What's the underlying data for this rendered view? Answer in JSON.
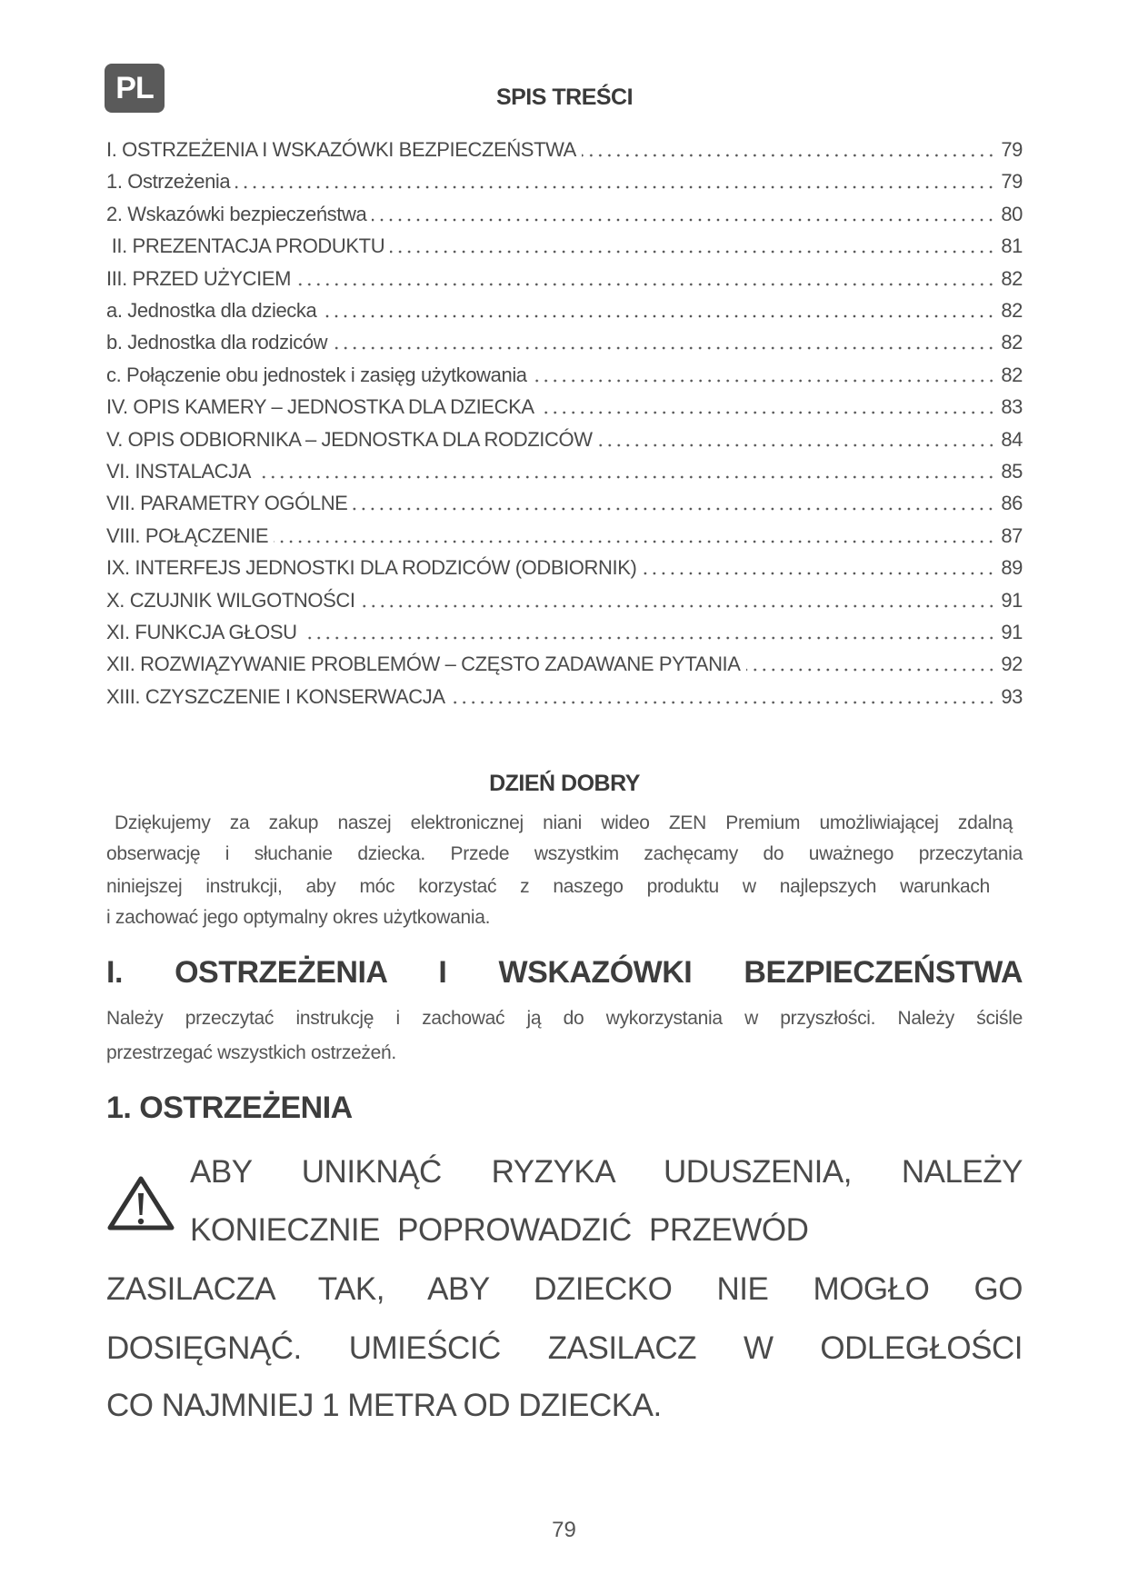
{
  "language_badge": "PL",
  "toc": {
    "title": "SPIS TREŚCI",
    "items": [
      {
        "label": "I. OSTRZEŻENIA I WSKAZÓWKI BEZPIECZEŃSTWA",
        "page": "79"
      },
      {
        "label": "1. Ostrzeżenia",
        "page": "79"
      },
      {
        "label": "2. Wskazówki bezpieczeństwa",
        "page": "80"
      },
      {
        "label": " II. PREZENTACJA PRODUKTU",
        "page": "81"
      },
      {
        "label": "III. PRZED UŻYCIEM",
        "page": "82"
      },
      {
        "label": "a. Jednostka dla dziecka",
        "page": "82"
      },
      {
        "label": "b. Jednostka dla rodziców",
        "page": "82"
      },
      {
        "label": "c. Połączenie obu jednostek i zasięg użytkowania",
        "page": "82"
      },
      {
        "label": "IV. OPIS KAMERY – JEDNOSTKA DLA DZIECKA",
        "page": "83"
      },
      {
        "label": "V. OPIS ODBIORNIKA – JEDNOSTKA DLA RODZICÓW",
        "page": "84"
      },
      {
        "label": "VI. INSTALACJA",
        "page": "85"
      },
      {
        "label": "VII. PARAMETRY OGÓLNE",
        "page": "86"
      },
      {
        "label": "VIII. POŁĄCZENIE",
        "page": "87"
      },
      {
        "label": "IX. INTERFEJS JEDNOSTKI DLA RODZICÓW (ODBIORNIK)",
        "page": "89"
      },
      {
        "label": "X. CZUJNIK WILGOTNOŚCI",
        "page": "91"
      },
      {
        "label": "XI. FUNKCJA GŁOSU",
        "page": "91"
      },
      {
        "label": "XII. ROZWIĄZYWANIE PROBLEMÓW – CZĘSTO ZADAWANE PYTANIA",
        "page": "92"
      },
      {
        "label": "XIII. CZYSZCZENIE I KONSERWACJA",
        "page": "93"
      }
    ]
  },
  "greeting": {
    "title": "DZIEŃ DOBRY",
    "lines": [
      "Dziękujemy za zakup naszej elektronicznej niani wideo ZEN Premium umożliwiającej zdalną",
      "obserwację i słuchanie dziecka. Przede wszystkim zachęcamy do uważnego przeczytania",
      "niniejszej instrukcji, aby móc korzystać z naszego produktu w najlepszych warunkach",
      "i zachować jego optymalny okres użytkowania."
    ]
  },
  "section1": {
    "title": "I. OSTRZEŻENIA I WSKAZÓWKI BEZPIECZEŃSTWA",
    "lines": [
      "Należy przeczytać instrukcję i zachować ją do wykorzystania w przyszłości. Należy ściśle",
      "przestrzegać wszystkich ostrzeżeń."
    ]
  },
  "subsection1": {
    "title": "1. OSTRZEŻENIA",
    "warning_icon": "warning-triangle-icon",
    "warning_lines": [
      "ABY UNIKNĄĆ RYZYKA UDUSZENIA, NALEŻY",
      "KONIECZNIE POPROWADZIĆ PRZEWÓD",
      "ZASILACZA TAK, ABY DZIECKO NIE MOGŁO GO",
      "DOSIĘGNĄĆ. UMIEŚCIĆ ZASILACZ W ODLEGŁOŚCI",
      "CO NAJMNIEJ 1 METRA OD DZIECKA."
    ]
  },
  "page_number": "79"
}
